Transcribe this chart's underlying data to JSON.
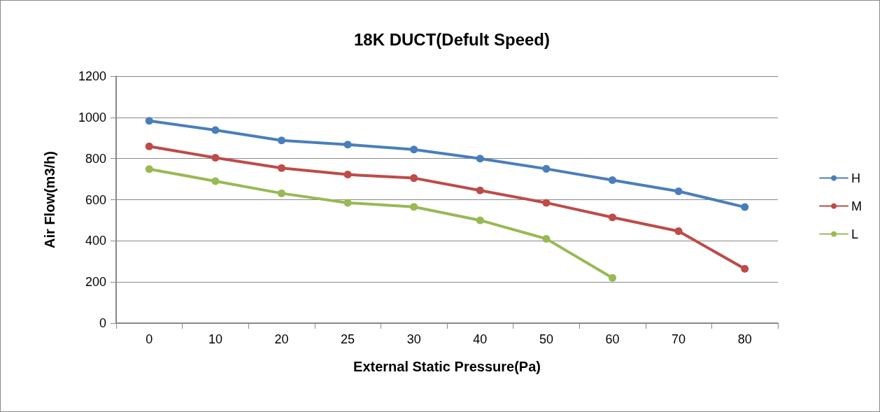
{
  "chart_data": {
    "type": "line",
    "title": "18K DUCT(Defult Speed)",
    "xlabel": "External Static Pressure(Pa)",
    "ylabel": "Air Flow(m3/h)",
    "categories": [
      "0",
      "10",
      "20",
      "25",
      "30",
      "40",
      "50",
      "60",
      "70",
      "80"
    ],
    "series": [
      {
        "name": "H",
        "color": "#4a7ebb",
        "values": [
          983,
          938,
          888,
          868,
          844,
          800,
          750,
          695,
          641,
          564
        ]
      },
      {
        "name": "M",
        "color": "#be4b48",
        "values": [
          859,
          804,
          754,
          722,
          705,
          645,
          585,
          514,
          447,
          264
        ]
      },
      {
        "name": "L",
        "color": "#98b954",
        "values": [
          749,
          690,
          631,
          585,
          565,
          500,
          410,
          220,
          null,
          null
        ]
      }
    ],
    "ylim": [
      0,
      1200
    ],
    "yticks": [
      0,
      200,
      400,
      600,
      800,
      1000,
      1200
    ],
    "grid": "y",
    "legend": "right",
    "marker": "circle",
    "line_style": "solid"
  }
}
